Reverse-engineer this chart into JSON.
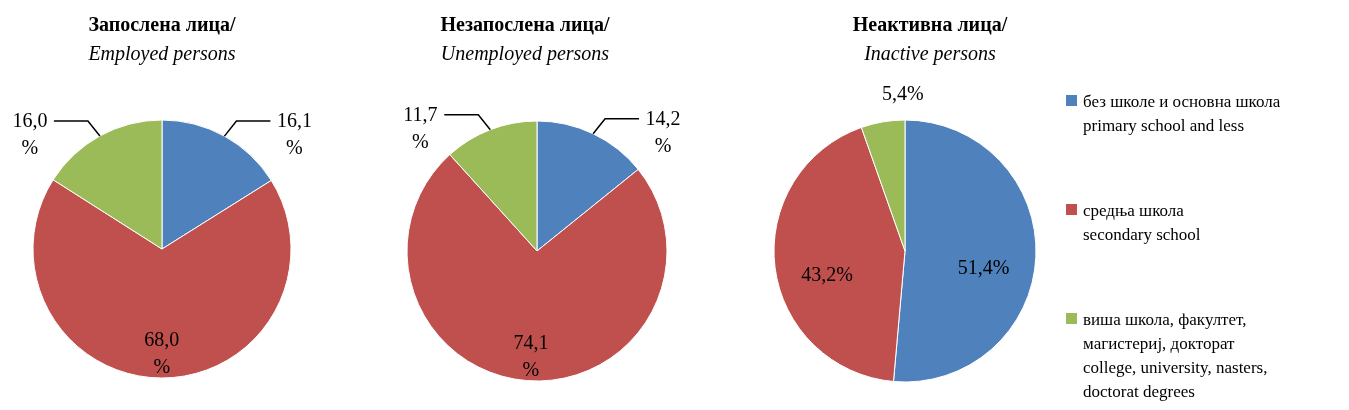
{
  "chart_data": [
    {
      "type": "pie",
      "title": "Запослена лица/",
      "subtitle": "Employed persons",
      "categories": [
        null,
        null,
        null
      ],
      "values": [
        16.1,
        68.0,
        16.0
      ],
      "value_labels": [
        "16,1 %",
        "68,0 %",
        "16,0 %"
      ],
      "colors": [
        "#4f81bd",
        "#c0504d",
        "#9bbb59"
      ],
      "legend": false
    },
    {
      "type": "pie",
      "title": "Незапослена лица/",
      "subtitle": "Unemployed persons",
      "categories": [
        null,
        null,
        null
      ],
      "values": [
        14.2,
        74.1,
        11.7
      ],
      "value_labels": [
        "14,2 %",
        "74,1 %",
        "11,7 %"
      ],
      "colors": [
        "#4f81bd",
        "#c0504d",
        "#9bbb59"
      ],
      "legend": false
    },
    {
      "type": "pie",
      "title": "Неактивна лица/",
      "subtitle": "Inactive persons",
      "categories": [
        "без школе и основна школа\nprimary school and less",
        "средња школа\nsecondary school",
        "виша школа, факултет,\nмагистериј, докторат\ncollege, university, nasters,\ndoctorat degrees"
      ],
      "values": [
        51.4,
        43.2,
        5.4
      ],
      "value_labels": [
        "51,4%",
        "43,2%",
        "5,4%"
      ],
      "colors": [
        "#4f81bd",
        "#c0504d",
        "#9bbb59"
      ],
      "legend": "right"
    }
  ]
}
